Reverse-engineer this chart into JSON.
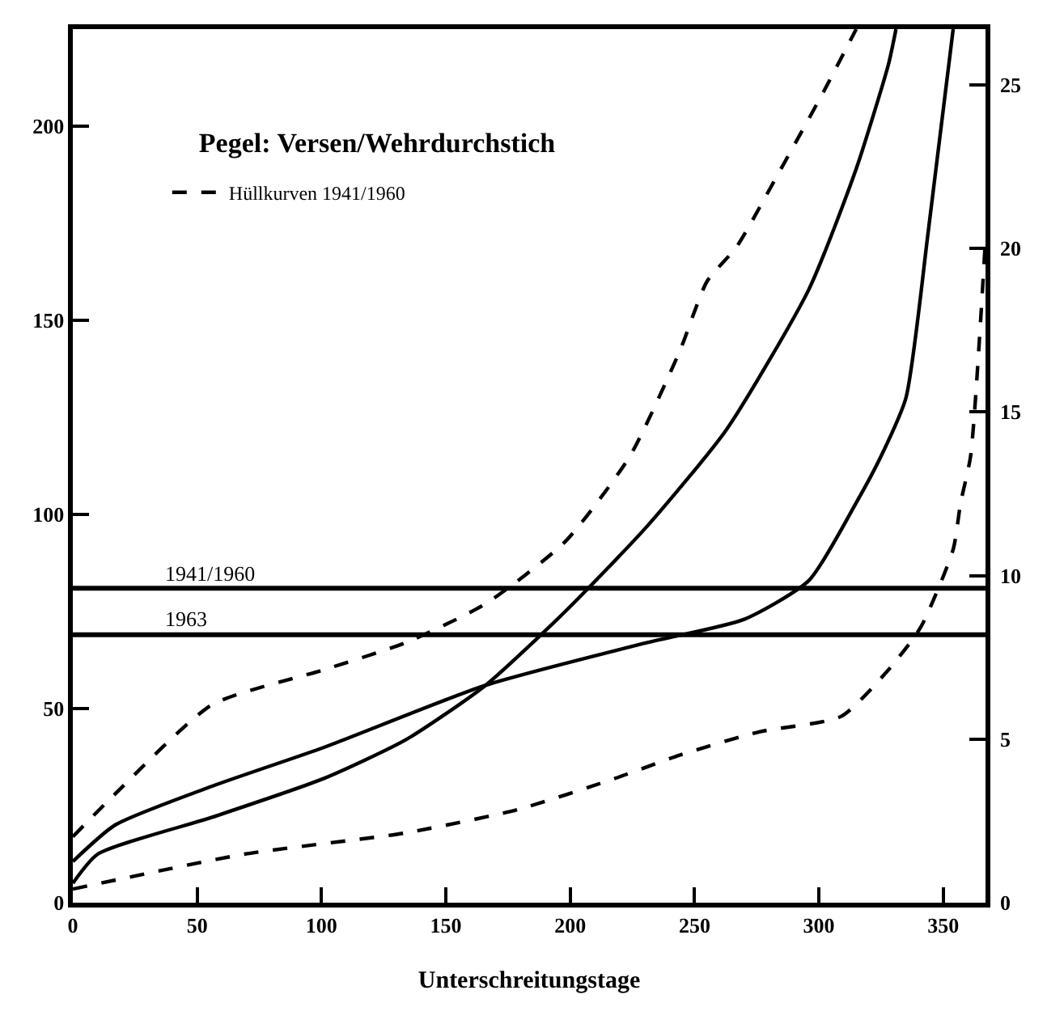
{
  "chart_data": {
    "type": "line",
    "title": "Pegel: Versen/Wehrdurchstich",
    "xlabel": "Unterschreitungstage",
    "xlim": [
      0,
      367
    ],
    "xticks": [
      0,
      50,
      100,
      150,
      200,
      250,
      300,
      350
    ],
    "ylim": [
      0,
      225
    ],
    "yticks": [
      0,
      50,
      100,
      150,
      200
    ],
    "y2lim": [
      0,
      26.7
    ],
    "y2ticks": [
      0,
      5,
      10,
      15,
      20,
      25
    ],
    "grid": false,
    "legend": "top left",
    "marker": "none",
    "series": [
      {
        "name": "Hüllkurven 1941/1960",
        "color": "#000000",
        "line_style": "dashed",
        "x": [
          0,
          17,
          56,
          101,
          134,
          166,
          198,
          224,
          244,
          255,
          267,
          283,
          302,
          315
        ],
        "values": [
          17,
          28,
          51,
          60,
          67,
          77,
          93,
          115,
          142,
          160,
          169,
          187,
          209,
          225
        ]
      },
      {
        "color": "#000000",
        "line_style": "solid",
        "x": [
          0,
          10,
          56,
          101,
          134,
          166,
          198,
          231,
          263,
          296,
          315,
          328,
          331
        ],
        "values": [
          5,
          12.5,
          22,
          32,
          42,
          56,
          75,
          97,
          122,
          158,
          189,
          216,
          225
        ]
      },
      {
        "color": "#000000",
        "line_style": "solid",
        "x": [
          0,
          17,
          56,
          101,
          166,
          231,
          270,
          296,
          315,
          325,
          335,
          344,
          354
        ],
        "values": [
          10.6,
          20,
          30,
          40,
          56,
          67,
          73,
          83,
          103,
          115,
          130,
          173,
          225
        ]
      },
      {
        "color": "#000000",
        "line_style": "dashed",
        "x": [
          0,
          69,
          134,
          179,
          218,
          244,
          276,
          309,
          328,
          341,
          354,
          357,
          361,
          367
        ],
        "values": [
          3.5,
          12.5,
          18,
          24,
          32,
          38,
          44,
          48,
          60,
          71,
          91,
          103,
          115,
          171
        ]
      }
    ],
    "ref_lines": [
      {
        "axis": "y",
        "value": 81,
        "color": "#000000"
      },
      {
        "axis": "y",
        "value": 69,
        "color": "#000000"
      }
    ],
    "annotations": [
      {
        "text": "1941/1960",
        "x": 36,
        "y": 81
      },
      {
        "text": "1963",
        "x": 36,
        "y": 69
      }
    ]
  }
}
